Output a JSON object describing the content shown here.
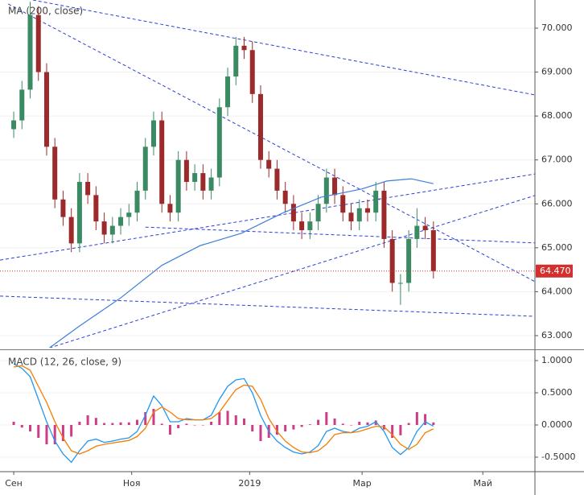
{
  "chart_data": [
    {
      "type": "candlestick",
      "title": "MA (200, close)",
      "x": [
        0,
        3,
        6,
        9,
        12,
        15,
        18,
        21,
        24,
        27,
        30,
        33,
        36,
        39,
        42,
        45,
        48,
        51,
        54,
        57,
        60,
        63,
        66,
        69,
        72,
        75,
        78,
        81,
        84,
        87,
        90,
        93,
        96,
        99,
        102,
        105,
        108,
        111,
        114,
        117,
        120,
        123,
        126,
        129,
        132,
        135,
        138,
        141,
        144,
        147,
        150,
        153
      ],
      "open": [
        67.7,
        67.9,
        68.6,
        70.3,
        69.0,
        67.3,
        66.1,
        65.7,
        65.1,
        66.5,
        66.2,
        65.6,
        65.3,
        65.5,
        65.7,
        65.8,
        66.3,
        67.3,
        67.9,
        66.0,
        65.8,
        67.0,
        66.5,
        66.7,
        66.3,
        66.6,
        68.2,
        68.9,
        69.6,
        69.5,
        68.5,
        67.0,
        66.8,
        66.3,
        66.0,
        65.6,
        65.4,
        65.6,
        66.0,
        66.6,
        66.2,
        65.8,
        65.6,
        65.9,
        65.8,
        66.3,
        65.2,
        64.2,
        64.2,
        65.2,
        65.5,
        65.4
      ],
      "high": [
        68.1,
        68.8,
        70.6,
        70.5,
        69.2,
        67.5,
        66.3,
        65.9,
        66.7,
        66.7,
        66.4,
        65.8,
        65.7,
        65.9,
        66.0,
        66.5,
        67.5,
        68.1,
        68.1,
        66.2,
        67.2,
        67.2,
        66.9,
        66.9,
        66.8,
        68.4,
        69.1,
        69.8,
        69.8,
        69.7,
        68.7,
        67.2,
        67.0,
        66.5,
        66.2,
        65.8,
        65.8,
        66.2,
        66.8,
        66.8,
        66.4,
        66.0,
        66.1,
        66.1,
        66.5,
        66.5,
        65.4,
        64.4,
        65.4,
        65.9,
        65.7,
        65.6
      ],
      "low": [
        67.5,
        67.7,
        68.4,
        68.8,
        67.1,
        65.9,
        65.5,
        64.9,
        64.9,
        66.0,
        65.4,
        65.1,
        65.1,
        65.3,
        65.5,
        65.6,
        66.1,
        67.1,
        65.8,
        65.6,
        65.6,
        66.3,
        66.3,
        66.1,
        66.1,
        66.4,
        68.0,
        68.7,
        69.3,
        68.3,
        66.8,
        66.6,
        66.1,
        65.8,
        65.4,
        65.2,
        65.2,
        65.4,
        65.8,
        66.0,
        65.6,
        65.4,
        65.4,
        65.6,
        65.6,
        65.0,
        64.0,
        63.7,
        64.0,
        65.0,
        65.2,
        64.3
      ],
      "close": [
        67.9,
        68.6,
        70.3,
        69.0,
        67.3,
        66.1,
        65.7,
        65.1,
        66.5,
        66.2,
        65.6,
        65.3,
        65.5,
        65.7,
        65.8,
        66.3,
        67.3,
        67.9,
        66.0,
        65.8,
        67.0,
        66.5,
        66.7,
        66.3,
        66.6,
        68.2,
        68.9,
        69.6,
        69.5,
        68.5,
        67.0,
        66.8,
        66.3,
        66.0,
        65.6,
        65.4,
        65.6,
        66.0,
        66.6,
        66.2,
        65.8,
        65.6,
        65.9,
        65.8,
        66.3,
        65.2,
        64.2,
        64.2,
        65.2,
        65.5,
        65.4,
        64.47
      ],
      "up_color": "#3b8a64",
      "down_color": "#9c2a2a",
      "ma": {
        "x": [
          13,
          24,
          39,
          54,
          68,
          83,
          98,
          112,
          127,
          136,
          145,
          153
        ],
        "values": [
          62.72,
          63.22,
          63.86,
          64.6,
          65.05,
          65.33,
          65.79,
          66.15,
          66.34,
          66.52,
          66.57,
          66.46
        ],
        "color": "#3d7fd9"
      },
      "trendlines": [
        {
          "x": [
            7,
            190
          ],
          "y": [
            70.64,
            68.48
          ]
        },
        {
          "x": [
            -2,
            190
          ],
          "y": [
            70.55,
            64.23
          ]
        },
        {
          "x": [
            -5,
            190
          ],
          "y": [
            64.72,
            66.68
          ]
        },
        {
          "x": [
            13,
            190
          ],
          "y": [
            62.72,
            66.19
          ]
        },
        {
          "x": [
            48,
            190
          ],
          "y": [
            65.47,
            65.11
          ]
        },
        {
          "x": [
            -5,
            190
          ],
          "y": [
            63.9,
            63.44
          ]
        }
      ],
      "trendline_color": "#2b3fd6",
      "last_price": {
        "value": 64.47,
        "label": "64.470"
      },
      "last_price_color": "#d32f2f",
      "xlim": [
        -5,
        190
      ],
      "ylim": [
        62.725,
        70.641
      ],
      "yticks": [
        {
          "value": 63,
          "label": "63.000"
        },
        {
          "value": 64,
          "label": "64.000"
        },
        {
          "value": 65,
          "label": "65.000"
        },
        {
          "value": 66,
          "label": "66.000"
        },
        {
          "value": 67,
          "label": "67.000"
        },
        {
          "value": 68,
          "label": "68.000"
        },
        {
          "value": 69,
          "label": "69.000"
        },
        {
          "value": 70,
          "label": "70.000"
        }
      ]
    },
    {
      "type": "macd",
      "title": "MACD (12, 26, close, 9)",
      "x": [
        0,
        3,
        6,
        9,
        12,
        15,
        18,
        21,
        24,
        27,
        30,
        33,
        36,
        39,
        42,
        45,
        48,
        51,
        54,
        57,
        60,
        63,
        66,
        69,
        72,
        75,
        78,
        81,
        84,
        87,
        90,
        93,
        96,
        99,
        102,
        105,
        108,
        111,
        114,
        117,
        120,
        123,
        126,
        129,
        132,
        135,
        138,
        141,
        144,
        147,
        150,
        153
      ],
      "series": [
        {
          "name": "MACD",
          "color": "#2196f3",
          "values": [
            0.95,
            0.88,
            0.75,
            0.4,
            0.05,
            -0.25,
            -0.45,
            -0.58,
            -0.4,
            -0.25,
            -0.22,
            -0.27,
            -0.25,
            -0.22,
            -0.2,
            -0.1,
            0.15,
            0.45,
            0.3,
            0.05,
            0.05,
            0.1,
            0.08,
            0.08,
            0.15,
            0.4,
            0.6,
            0.7,
            0.72,
            0.5,
            0.15,
            -0.1,
            -0.25,
            -0.35,
            -0.42,
            -0.45,
            -0.42,
            -0.32,
            -0.1,
            -0.05,
            -0.1,
            -0.12,
            -0.05,
            -0.02,
            0.05,
            -0.1,
            -0.35,
            -0.46,
            -0.35,
            -0.1,
            0.05,
            -0.02
          ]
        },
        {
          "name": "Signal",
          "color": "#f57c00",
          "values": [
            0.9,
            0.92,
            0.85,
            0.6,
            0.35,
            0.05,
            -0.2,
            -0.4,
            -0.45,
            -0.4,
            -0.33,
            -0.3,
            -0.28,
            -0.26,
            -0.24,
            -0.18,
            -0.05,
            0.2,
            0.28,
            0.2,
            0.1,
            0.08,
            0.08,
            0.08,
            0.1,
            0.2,
            0.38,
            0.55,
            0.62,
            0.6,
            0.4,
            0.1,
            -0.1,
            -0.25,
            -0.35,
            -0.42,
            -0.43,
            -0.4,
            -0.3,
            -0.15,
            -0.12,
            -0.12,
            -0.1,
            -0.06,
            -0.02,
            -0.03,
            -0.15,
            -0.3,
            -0.38,
            -0.3,
            -0.12,
            -0.06
          ]
        }
      ],
      "histogram": {
        "color": "#cc3d86",
        "values": [
          0.05,
          -0.04,
          -0.1,
          -0.2,
          -0.3,
          -0.3,
          -0.25,
          -0.18,
          0.05,
          0.15,
          0.11,
          0.03,
          0.03,
          0.04,
          0.04,
          0.08,
          0.2,
          0.25,
          0.02,
          -0.15,
          -0.05,
          0.02,
          0,
          0,
          0.05,
          0.2,
          0.22,
          0.15,
          0.1,
          -0.1,
          -0.25,
          -0.2,
          -0.15,
          -0.1,
          -0.07,
          -0.03,
          0.01,
          0.08,
          0.2,
          0.1,
          0.02,
          0,
          0.05,
          0.04,
          0.07,
          -0.07,
          -0.2,
          -0.16,
          0.03,
          0.2,
          0.17,
          0.04
        ]
      },
      "xlim": [
        -5,
        190
      ],
      "ylim": [
        -0.7125,
        1.1375
      ],
      "yticks": [
        {
          "value": -0.5,
          "label": "-0.5000"
        },
        {
          "value": 0,
          "label": "0.0000"
        },
        {
          "value": 0.5,
          "label": "0.5000"
        },
        {
          "value": 1,
          "label": "1.0000"
        }
      ],
      "xticks": [
        {
          "value": 0,
          "label": "Сен"
        },
        {
          "value": 43,
          "label": "Ноя"
        },
        {
          "value": 86,
          "label": "2019"
        },
        {
          "value": 127,
          "label": "Мар"
        },
        {
          "value": 171,
          "label": "Май"
        }
      ]
    }
  ]
}
